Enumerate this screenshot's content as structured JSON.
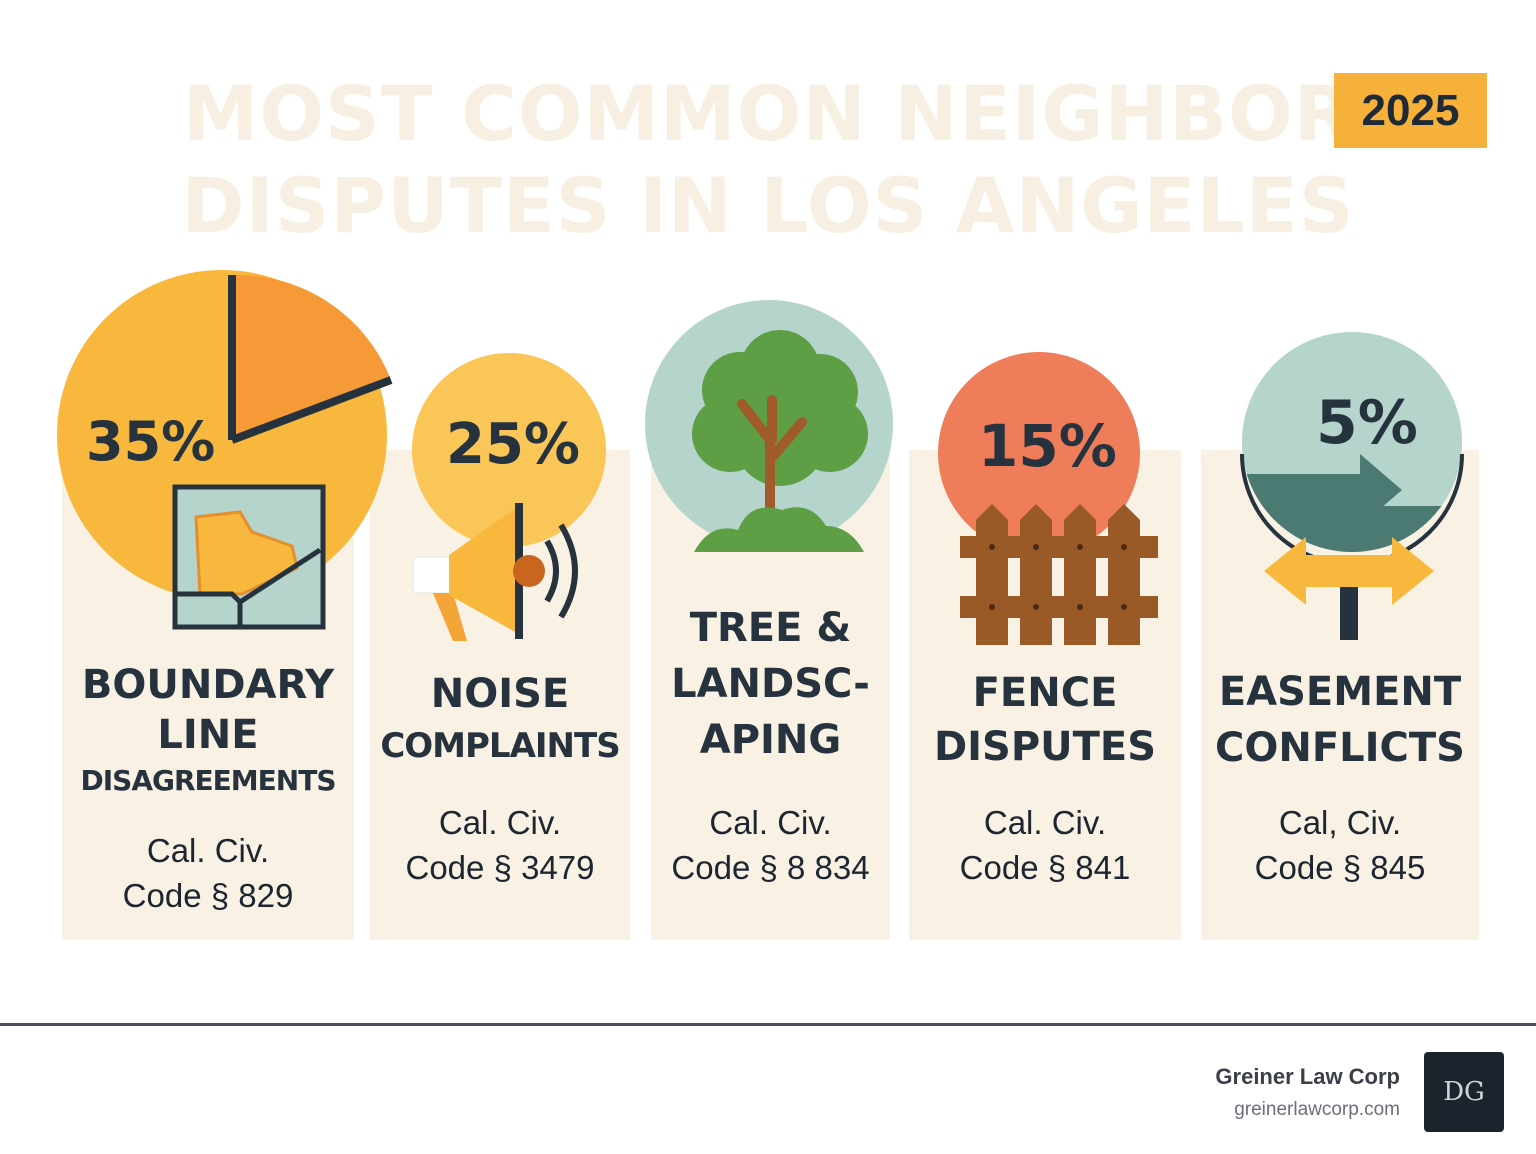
{
  "header": {
    "title_line1": "MOST COMMON NEIGHBOR",
    "title_line2": "DISPUTES IN LOS ANGELES",
    "year": "2025"
  },
  "disputes": [
    {
      "percent_value": 35,
      "percent_label": "35%",
      "icon": "boundary-map-icon",
      "label_lines": [
        "BOUNDARY",
        "LINE",
        "DISAGREEMENTS"
      ],
      "code_lines": [
        "Cal. Civ.",
        "Code § 829"
      ]
    },
    {
      "percent_value": 25,
      "percent_label": "25%",
      "icon": "megaphone-icon",
      "label_lines": [
        "NOISE",
        "COMPLAINTS"
      ],
      "code_lines": [
        "Cal. Civ.",
        "Code § 3479"
      ]
    },
    {
      "percent_value": null,
      "percent_label": "",
      "icon": "tree-icon",
      "label_lines": [
        "TREE &",
        "LANDSC-",
        "APING"
      ],
      "code_lines": [
        "Cal. Civ.",
        "Code § 8 834"
      ]
    },
    {
      "percent_value": 15,
      "percent_label": "15%",
      "icon": "fence-icon",
      "label_lines": [
        "FENCE",
        "DISPUTES"
      ],
      "code_lines": [
        "Cal. Civ.",
        "Code § 841"
      ]
    },
    {
      "percent_value": 5,
      "percent_label": "5%",
      "icon": "signpost-arrow-icon",
      "label_lines": [
        "EASEMENT",
        "CONFLICTS"
      ],
      "code_lines": [
        "Cal, Civ.",
        "Code § 845"
      ]
    }
  ],
  "footer": {
    "company": "Greiner Law Corp",
    "url": "greinerlawcorp.com",
    "logo_text": "DG"
  },
  "colors": {
    "title": "#f6efe2",
    "badge": "#f6b13b",
    "panel": "#f8f1e4",
    "text": "#26323e",
    "orange": "#f59a36",
    "yellow": "#f8b83e",
    "teal": "#b4d4cc",
    "coral": "#ef7d5a",
    "green": "#5e9e45",
    "brown": "#9a5a28"
  }
}
